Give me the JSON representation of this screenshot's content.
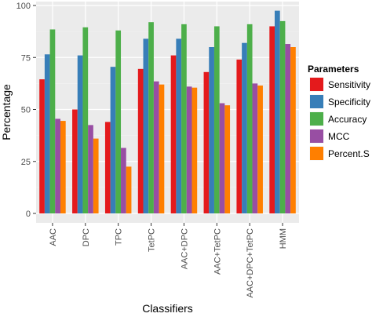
{
  "chart_data": {
    "type": "bar",
    "xlabel": "Classifiers",
    "ylabel": "Percentage",
    "ylim": [
      0,
      100
    ],
    "yticks": [
      0,
      25,
      50,
      75,
      100
    ],
    "grid": true,
    "legend_title": "Parameters",
    "legend_position": "right",
    "categories": [
      "AAC",
      "DPC",
      "TPC",
      "TetPC",
      "AAC+DPC",
      "AAC+TetPC",
      "AAC+DPC+TetPC",
      "HMM"
    ],
    "series": [
      {
        "name": "Sensitivity",
        "color": "#e41a1c",
        "values": [
          64.5,
          50,
          44,
          69.5,
          76,
          68,
          74,
          90
        ]
      },
      {
        "name": "Specificity",
        "color": "#377eb8",
        "values": [
          76.5,
          76,
          70.5,
          84,
          84,
          80,
          82,
          97.5
        ]
      },
      {
        "name": "Accuracy",
        "color": "#4daf4a",
        "values": [
          88.5,
          89.5,
          88,
          92,
          91,
          90,
          91,
          92.5
        ]
      },
      {
        "name": "MCC",
        "color": "#984ea3",
        "values": [
          45.5,
          42.5,
          31.5,
          63.5,
          61,
          53,
          62.5,
          81.5
        ]
      },
      {
        "name": "Percent.S",
        "color": "#ff7f00",
        "values": [
          44.5,
          36,
          22.5,
          62,
          60.5,
          52,
          61.5,
          80
        ]
      }
    ]
  }
}
